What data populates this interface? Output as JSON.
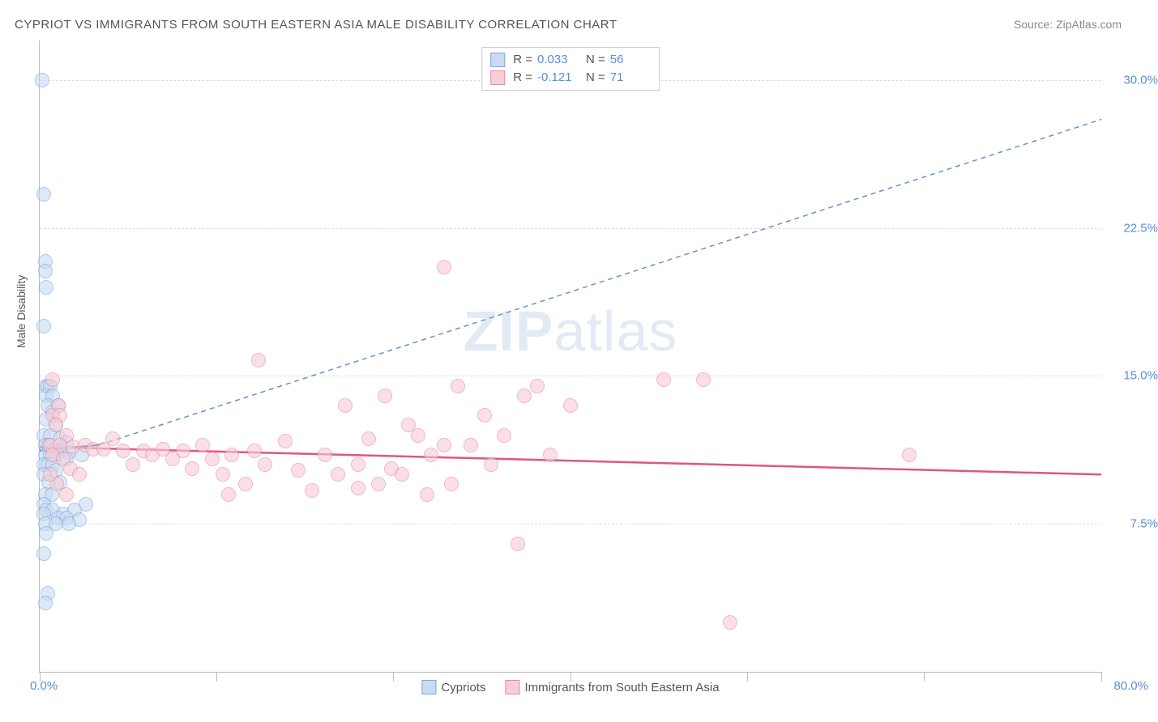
{
  "title": "CYPRIOT VS IMMIGRANTS FROM SOUTH EASTERN ASIA MALE DISABILITY CORRELATION CHART",
  "source": "Source: ZipAtlas.com",
  "ylabel": "Male Disability",
  "watermark_bold": "ZIP",
  "watermark_light": "atlas",
  "chart": {
    "type": "scatter",
    "background_color": "#ffffff",
    "grid_color": "#dddddd",
    "axis_color": "#bbbbbb",
    "tick_label_color": "#5b8dd6",
    "xlim": [
      0,
      80
    ],
    "ylim": [
      0,
      32
    ],
    "xtick_positions": [
      0,
      13.3,
      26.6,
      40,
      53.3,
      66.6,
      80
    ],
    "ytick_positions": [
      7.5,
      15.0,
      22.5,
      30.0
    ],
    "ytick_labels": [
      "7.5%",
      "15.0%",
      "22.5%",
      "30.0%"
    ],
    "xmin_label": "0.0%",
    "xmax_label": "80.0%",
    "point_radius": 8,
    "point_stroke_width": 1.5,
    "series": [
      {
        "name": "Cypriots",
        "fill": "#c8dbf2",
        "stroke": "#7aa8dd",
        "fill_opacity": 0.6,
        "R_label": "R =",
        "R": "0.033",
        "N_label": "N =",
        "N": "56",
        "regression": {
          "x1": 0,
          "y1": 11.2,
          "x2": 4.5,
          "y2": 11.5,
          "color": "#2b5fa8",
          "width": 2.5,
          "dash": "none"
        },
        "extension": {
          "x1": 4.5,
          "y1": 11.5,
          "x2": 80,
          "y2": 28.0,
          "color": "#6a8fc8",
          "width": 1.5,
          "dash": "6,5"
        },
        "points": [
          [
            0.2,
            30.0
          ],
          [
            0.3,
            24.2
          ],
          [
            0.4,
            20.8
          ],
          [
            0.4,
            20.3
          ],
          [
            0.5,
            19.5
          ],
          [
            0.3,
            17.5
          ],
          [
            0.5,
            14.5
          ],
          [
            0.6,
            14.5
          ],
          [
            0.8,
            14.5
          ],
          [
            0.5,
            14.0
          ],
          [
            1.0,
            14.0
          ],
          [
            0.6,
            13.5
          ],
          [
            1.0,
            13.2
          ],
          [
            1.4,
            13.5
          ],
          [
            0.5,
            12.8
          ],
          [
            1.2,
            12.5
          ],
          [
            0.3,
            12.0
          ],
          [
            0.8,
            12.0
          ],
          [
            1.5,
            11.8
          ],
          [
            2.0,
            11.6
          ],
          [
            0.4,
            11.5
          ],
          [
            0.7,
            11.5
          ],
          [
            1.0,
            11.2
          ],
          [
            1.5,
            11.2
          ],
          [
            2.2,
            11.1
          ],
          [
            3.2,
            11.0
          ],
          [
            0.4,
            11.0
          ],
          [
            0.8,
            11.0
          ],
          [
            1.3,
            11.0
          ],
          [
            2.0,
            10.8
          ],
          [
            0.3,
            10.5
          ],
          [
            0.6,
            10.5
          ],
          [
            1.0,
            10.5
          ],
          [
            1.2,
            10.2
          ],
          [
            0.3,
            10.0
          ],
          [
            0.7,
            9.6
          ],
          [
            1.5,
            9.6
          ],
          [
            0.4,
            9.0
          ],
          [
            0.9,
            9.0
          ],
          [
            0.3,
            8.5
          ],
          [
            3.5,
            8.5
          ],
          [
            0.5,
            8.2
          ],
          [
            1.0,
            8.2
          ],
          [
            1.8,
            8.0
          ],
          [
            2.6,
            8.2
          ],
          [
            0.3,
            8.0
          ],
          [
            1.4,
            7.8
          ],
          [
            2.0,
            7.8
          ],
          [
            3.0,
            7.7
          ],
          [
            0.4,
            7.5
          ],
          [
            1.2,
            7.5
          ],
          [
            2.2,
            7.5
          ],
          [
            0.5,
            7.0
          ],
          [
            0.3,
            6.0
          ],
          [
            0.6,
            4.0
          ],
          [
            0.4,
            3.5
          ]
        ]
      },
      {
        "name": "Immigrants from South Eastern Asia",
        "fill": "#f7cdd7",
        "stroke": "#e68aa4",
        "fill_opacity": 0.6,
        "R_label": "R =",
        "R": "-0.121",
        "N_label": "N =",
        "N": "71",
        "regression": {
          "x1": 0,
          "y1": 11.4,
          "x2": 80,
          "y2": 10.0,
          "color": "#e0567f",
          "width": 2.5,
          "dash": "none"
        },
        "extension": null,
        "points": [
          [
            1.0,
            14.8
          ],
          [
            1.4,
            13.5
          ],
          [
            1.0,
            13.0
          ],
          [
            1.5,
            13.0
          ],
          [
            1.2,
            12.5
          ],
          [
            2.0,
            12.0
          ],
          [
            0.8,
            11.5
          ],
          [
            1.5,
            11.5
          ],
          [
            2.5,
            11.4
          ],
          [
            3.4,
            11.5
          ],
          [
            4.0,
            11.3
          ],
          [
            4.8,
            11.3
          ],
          [
            5.5,
            11.8
          ],
          [
            6.3,
            11.2
          ],
          [
            7.0,
            10.5
          ],
          [
            7.8,
            11.2
          ],
          [
            8.5,
            11.0
          ],
          [
            9.3,
            11.3
          ],
          [
            10.0,
            10.8
          ],
          [
            10.8,
            11.2
          ],
          [
            11.5,
            10.3
          ],
          [
            12.3,
            11.5
          ],
          [
            13.0,
            10.8
          ],
          [
            13.8,
            10.0
          ],
          [
            14.5,
            11.0
          ],
          [
            15.5,
            9.5
          ],
          [
            14.2,
            9.0
          ],
          [
            16.2,
            11.2
          ],
          [
            17.0,
            10.5
          ],
          [
            18.5,
            11.7
          ],
          [
            19.5,
            10.2
          ],
          [
            16.5,
            15.8
          ],
          [
            20.5,
            9.2
          ],
          [
            21.5,
            11.0
          ],
          [
            22.5,
            10.0
          ],
          [
            23.0,
            13.5
          ],
          [
            24.0,
            10.5
          ],
          [
            24.8,
            11.8
          ],
          [
            24.0,
            9.3
          ],
          [
            25.5,
            9.5
          ],
          [
            26.0,
            14.0
          ],
          [
            26.5,
            10.3
          ],
          [
            27.3,
            10.0
          ],
          [
            27.8,
            12.5
          ],
          [
            28.5,
            12.0
          ],
          [
            29.2,
            9.0
          ],
          [
            29.5,
            11.0
          ],
          [
            30.5,
            11.5
          ],
          [
            31.5,
            14.5
          ],
          [
            31.0,
            9.5
          ],
          [
            32.5,
            11.5
          ],
          [
            33.5,
            13.0
          ],
          [
            34.0,
            10.5
          ],
          [
            35.0,
            12.0
          ],
          [
            30.5,
            20.5
          ],
          [
            36.0,
            6.5
          ],
          [
            36.5,
            14.0
          ],
          [
            37.5,
            14.5
          ],
          [
            38.5,
            11.0
          ],
          [
            40.0,
            13.5
          ],
          [
            47.0,
            14.8
          ],
          [
            50.0,
            14.8
          ],
          [
            52.0,
            2.5
          ],
          [
            65.5,
            11.0
          ],
          [
            1.0,
            11.0
          ],
          [
            1.8,
            10.8
          ],
          [
            2.3,
            10.3
          ],
          [
            3.0,
            10.0
          ],
          [
            1.3,
            9.5
          ],
          [
            2.0,
            9.0
          ],
          [
            0.8,
            10.0
          ]
        ]
      }
    ]
  }
}
